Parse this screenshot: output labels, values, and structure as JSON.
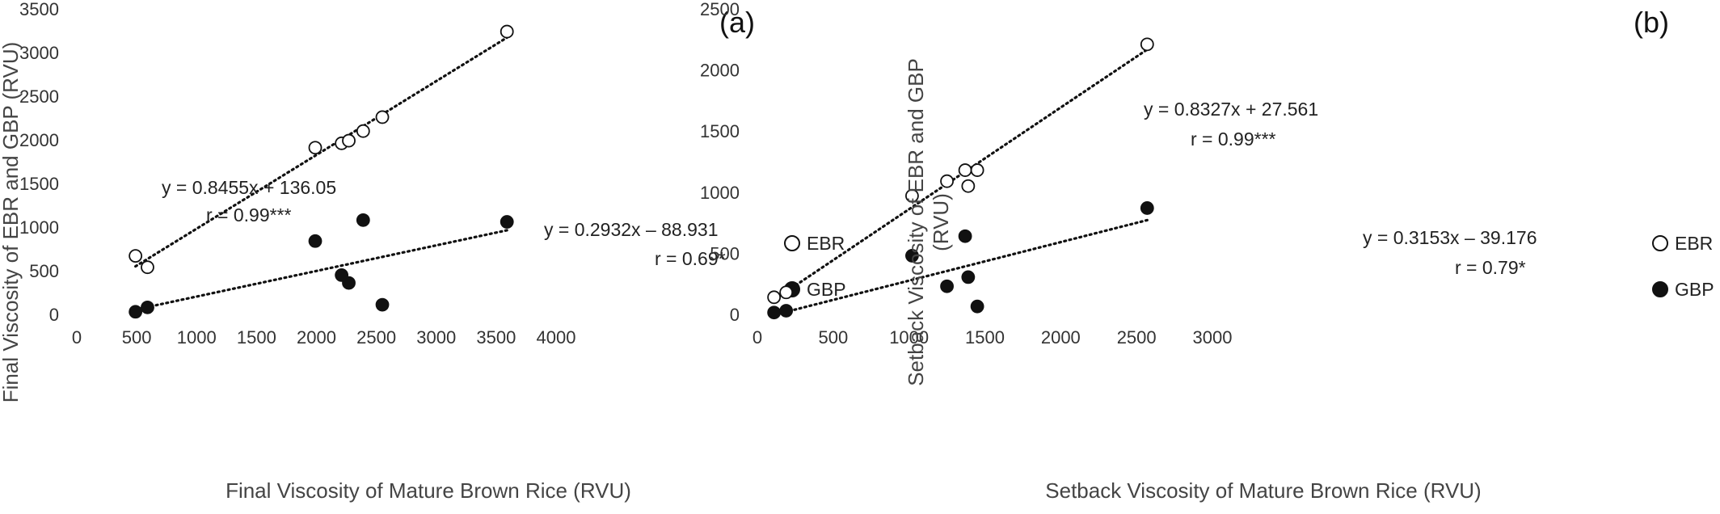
{
  "chart_data": [
    {
      "type": "scatter",
      "panel_label": "(a)",
      "xlabel": "Final Viscosity of Mature Brown Rice (RVU)",
      "ylabel": "Final Viscosity of EBR and GBP (RVU)",
      "xlim": [
        0,
        4000
      ],
      "ylim": [
        0,
        3500
      ],
      "xticks": [
        "0",
        "500",
        "1000",
        "1500",
        "2000",
        "2500",
        "3000",
        "3500",
        "4000"
      ],
      "yticks": [
        "0",
        "500",
        "1000",
        "1500",
        "2000",
        "2500",
        "3000",
        "3500"
      ],
      "grid": false,
      "legend_position": "right",
      "series": [
        {
          "name": "EBR",
          "marker": "open-circle",
          "points": [
            [
              490,
              670
            ],
            [
              590,
              540
            ],
            [
              1990,
              1910
            ],
            [
              2210,
              1960
            ],
            [
              2270,
              1990
            ],
            [
              2390,
              2100
            ],
            [
              2550,
              2260
            ],
            [
              3590,
              3240
            ]
          ],
          "trendline": {
            "slope": 0.8455,
            "intercept": 136.05,
            "x_range": [
              490,
              3590
            ]
          },
          "equation": "y = 0.8455x + 136.05",
          "r_text": "r = 0.99***"
        },
        {
          "name": "GBP",
          "marker": "filled-circle",
          "points": [
            [
              490,
              30
            ],
            [
              590,
              80
            ],
            [
              1990,
              840
            ],
            [
              2210,
              450
            ],
            [
              2270,
              360
            ],
            [
              2390,
              1080
            ],
            [
              2550,
              110
            ],
            [
              3590,
              1060
            ]
          ],
          "trendline": {
            "slope": 0.2932,
            "intercept": -88.931,
            "x_range": [
              490,
              3590
            ]
          },
          "equation": "y = 0.2932x – 88.931",
          "r_text": "r = 0.69*"
        }
      ]
    },
    {
      "type": "scatter",
      "panel_label": "(b)",
      "xlabel": "Setback Viscosity of Mature Brown Rice (RVU)",
      "ylabel_line1": "Setback Viscosity of EBR and GBP",
      "ylabel_line2": "(RVU)",
      "xlim": [
        0,
        3000
      ],
      "ylim": [
        0,
        2500
      ],
      "xticks": [
        "0",
        "500",
        "1000",
        "1500",
        "2000",
        "2500",
        "3000"
      ],
      "yticks": [
        "0",
        "500",
        "1000",
        "1500",
        "2000",
        "2500"
      ],
      "grid": false,
      "legend_position": "right",
      "series": [
        {
          "name": "EBR",
          "marker": "open-circle",
          "points": [
            [
              110,
              140
            ],
            [
              190,
              180
            ],
            [
              1020,
              970
            ],
            [
              1250,
              1090
            ],
            [
              1370,
              1180
            ],
            [
              1390,
              1050
            ],
            [
              1450,
              1180
            ],
            [
              2570,
              2210
            ]
          ],
          "trendline": {
            "slope": 0.8327,
            "intercept": 27.561,
            "x_range": [
              110,
              2570
            ]
          },
          "equation": "y = 0.8327x + 27.561",
          "r_text": "r = 0.99***"
        },
        {
          "name": "GBP",
          "marker": "filled-circle",
          "points": [
            [
              110,
              15
            ],
            [
              190,
              30
            ],
            [
              1020,
              480
            ],
            [
              1250,
              230
            ],
            [
              1370,
              640
            ],
            [
              1390,
              305
            ],
            [
              1450,
              65
            ],
            [
              2570,
              870
            ]
          ],
          "trendline": {
            "slope": 0.3153,
            "intercept": -39.176,
            "x_range": [
              110,
              2570
            ]
          },
          "equation": "y = 0.3153x – 39.176",
          "r_text": "r = 0.79*"
        }
      ]
    }
  ]
}
